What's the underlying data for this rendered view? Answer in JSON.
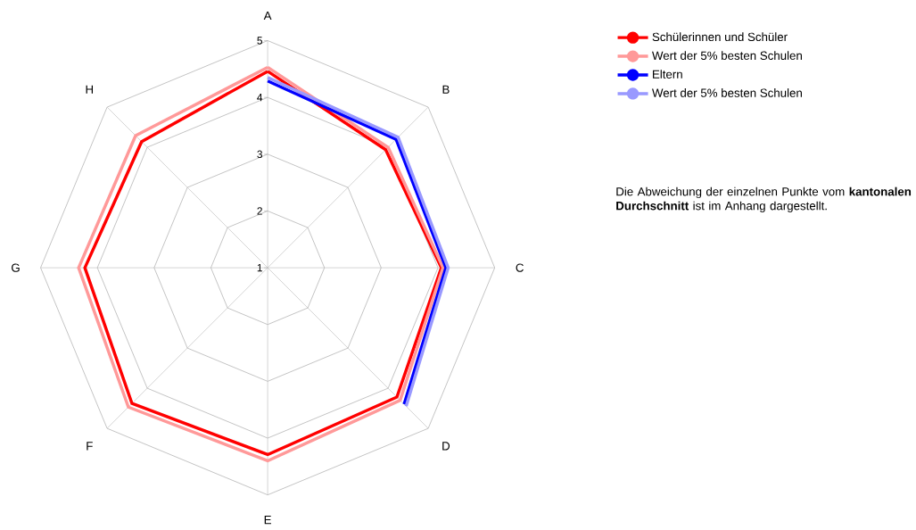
{
  "chart_data": {
    "type": "radar",
    "categories": [
      "A",
      "B",
      "C",
      "D",
      "E",
      "F",
      "G",
      "H"
    ],
    "series": [
      {
        "name": "Schülerinnen und Schüler",
        "color": "#ff0000",
        "values": [
          4.46,
          3.94,
          4.06,
          4.22,
          4.29,
          4.38,
          4.22,
          4.14
        ]
      },
      {
        "name": "Wert der 5% besten Schulen",
        "color": "#ff9999",
        "values": [
          4.53,
          4.0,
          4.09,
          4.3,
          4.4,
          4.47,
          4.33,
          4.29
        ]
      },
      {
        "name": "Eltern",
        "color": "#0000ff",
        "values": [
          4.29,
          4.2,
          4.14,
          4.4,
          null,
          null,
          null,
          null
        ]
      },
      {
        "name": "Wert der 5% besten Schulen",
        "color": "#9999ff",
        "values": [
          4.35,
          4.25,
          4.18,
          4.45,
          null,
          null,
          null,
          null
        ]
      }
    ],
    "ylim": [
      1,
      5
    ],
    "yticks": [
      1,
      2,
      3,
      4,
      5
    ],
    "grid": true,
    "legend": "top right",
    "annotations": [
      "Die Abweichung der einzelnen Punkte vom **kantonalen Durchschnitt** ist im Anhang dargestellt."
    ]
  }
}
